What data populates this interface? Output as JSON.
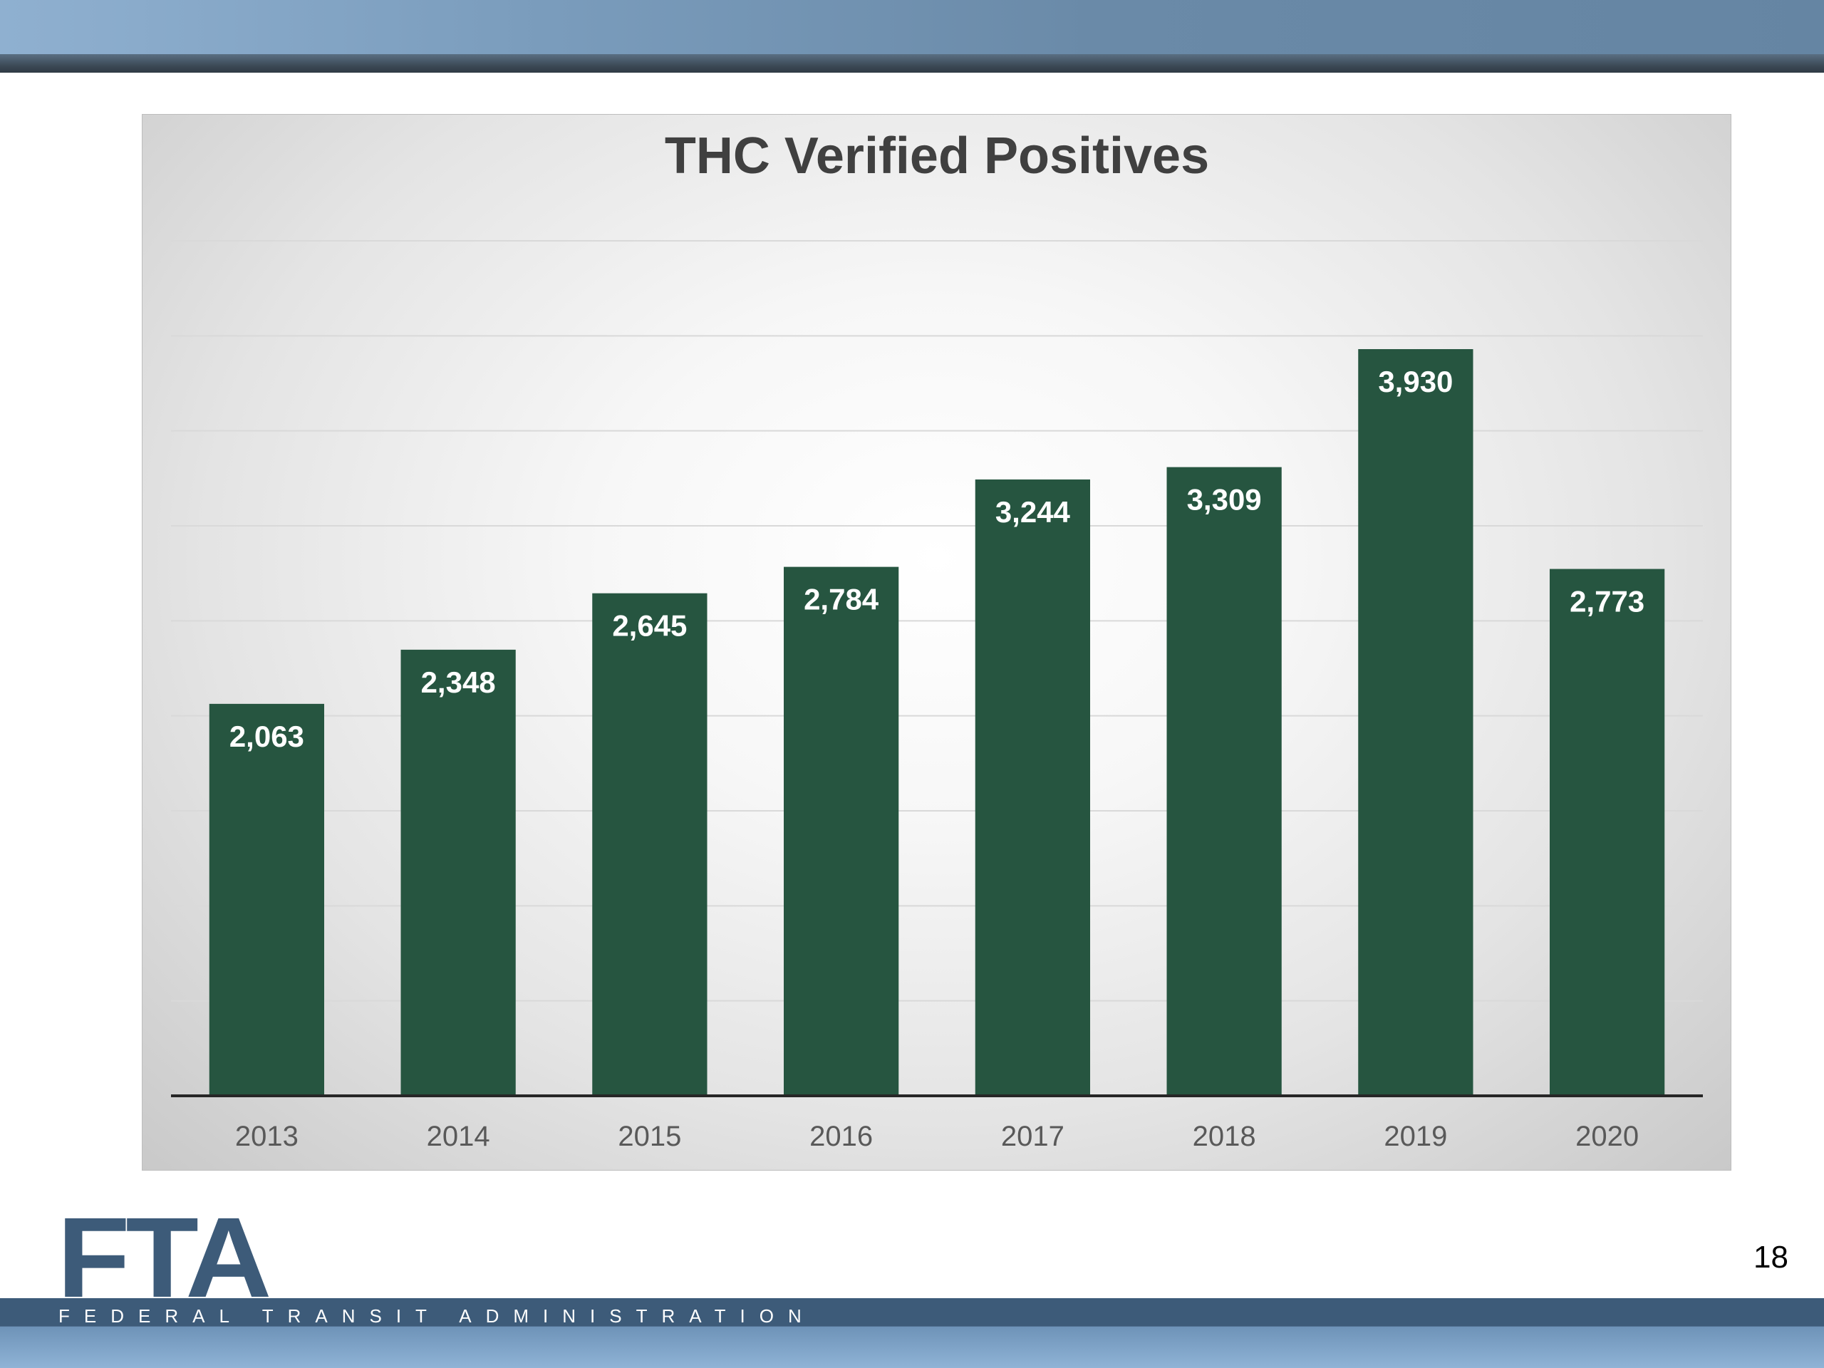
{
  "slide": {
    "page_number": "18",
    "logo": {
      "mark": "FTA",
      "agency_name": "FEDERAL TRANSIT ADMINISTRATION"
    }
  },
  "colors": {
    "bar": "#265540",
    "title": "#404040",
    "tick": "#595959",
    "gridline": "#d9d9d9",
    "axis": "#262626",
    "brand_blue": "#3d5b79"
  },
  "chart_data": {
    "type": "bar",
    "title": "THC Verified Positives",
    "xlabel": "",
    "ylabel": "",
    "categories": [
      "2013",
      "2014",
      "2015",
      "2016",
      "2017",
      "2018",
      "2019",
      "2020"
    ],
    "values": [
      2063,
      2348,
      2645,
      2784,
      3244,
      3309,
      3930,
      2773
    ],
    "value_labels": [
      "2,063",
      "2,348",
      "2,645",
      "2,784",
      "3,244",
      "3,309",
      "3,930",
      "2,773"
    ],
    "ylim": [
      0,
      4500
    ],
    "gridline_step": 500,
    "grid": true,
    "legend": "none",
    "data_labels": "inside-end"
  }
}
